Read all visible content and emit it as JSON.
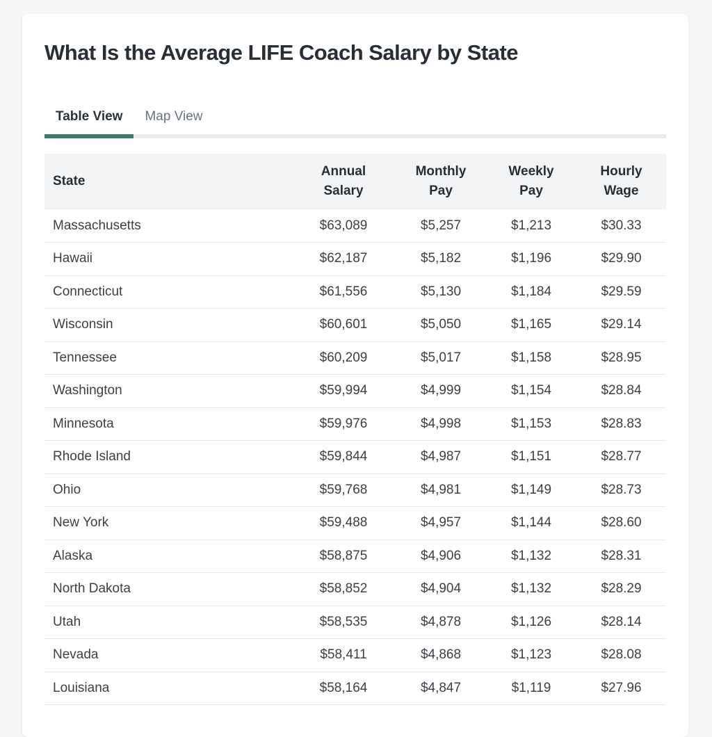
{
  "header": {
    "title": "What Is the Average LIFE Coach Salary by State"
  },
  "tabs": [
    {
      "label": "Table View",
      "active": true
    },
    {
      "label": "Map View",
      "active": false
    }
  ],
  "theme": {
    "page_background": "#f6f7f9",
    "card_background": "#ffffff",
    "accent_green": "#3e7d66",
    "tab_track_gray": "#e9eaec",
    "table_header_bg": "#f3f4f5",
    "row_divider": "#e8e9eb",
    "title_color": "#272e36",
    "cell_text_color": "#3a4046",
    "inactive_tab_color": "#6b7380"
  },
  "table": {
    "columns": [
      "State",
      "Annual Salary",
      "Monthly Pay",
      "Weekly Pay",
      "Hourly Wage"
    ],
    "rows": [
      [
        "Massachusetts",
        "$63,089",
        "$5,257",
        "$1,213",
        "$30.33"
      ],
      [
        "Hawaii",
        "$62,187",
        "$5,182",
        "$1,196",
        "$29.90"
      ],
      [
        "Connecticut",
        "$61,556",
        "$5,130",
        "$1,184",
        "$29.59"
      ],
      [
        "Wisconsin",
        "$60,601",
        "$5,050",
        "$1,165",
        "$29.14"
      ],
      [
        "Tennessee",
        "$60,209",
        "$5,017",
        "$1,158",
        "$28.95"
      ],
      [
        "Washington",
        "$59,994",
        "$4,999",
        "$1,154",
        "$28.84"
      ],
      [
        "Minnesota",
        "$59,976",
        "$4,998",
        "$1,153",
        "$28.83"
      ],
      [
        "Rhode Island",
        "$59,844",
        "$4,987",
        "$1,151",
        "$28.77"
      ],
      [
        "Ohio",
        "$59,768",
        "$4,981",
        "$1,149",
        "$28.73"
      ],
      [
        "New York",
        "$59,488",
        "$4,957",
        "$1,144",
        "$28.60"
      ],
      [
        "Alaska",
        "$58,875",
        "$4,906",
        "$1,132",
        "$28.31"
      ],
      [
        "North Dakota",
        "$58,852",
        "$4,904",
        "$1,132",
        "$28.29"
      ],
      [
        "Utah",
        "$58,535",
        "$4,878",
        "$1,126",
        "$28.14"
      ],
      [
        "Nevada",
        "$58,411",
        "$4,868",
        "$1,123",
        "$28.08"
      ],
      [
        "Louisiana",
        "$58,164",
        "$4,847",
        "$1,119",
        "$27.96"
      ]
    ]
  }
}
